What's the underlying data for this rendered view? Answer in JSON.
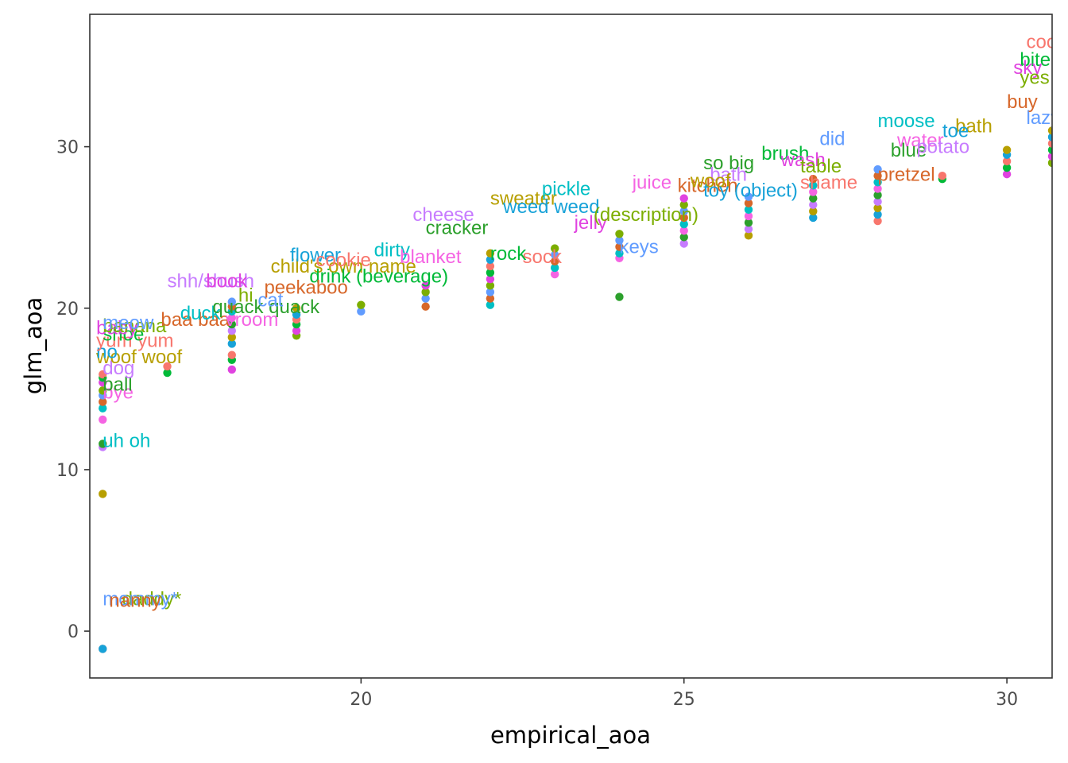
{
  "chart_data": {
    "type": "scatter",
    "xlabel": "empirical_aoa",
    "ylabel": "glm_aoa",
    "xlim": [
      15.8,
      30.7
    ],
    "ylim": [
      -2.9,
      38.2
    ],
    "x_ticks": [
      20,
      25,
      30
    ],
    "y_ticks": [
      0,
      10,
      20,
      30
    ],
    "grid": false,
    "legend": "none",
    "palette": [
      "#F8766D",
      "#D7672A",
      "#B79F00",
      "#7CAE00",
      "#2CA02C",
      "#00BA38",
      "#00BFC4",
      "#17A2D8",
      "#619CFF",
      "#C77CFF",
      "#E043E0",
      "#F564E3"
    ],
    "point_groups": [
      {
        "x": 16,
        "y": [
          -1.1,
          -1.1,
          8.5,
          11.4,
          11.6,
          13.1,
          13.8,
          14.2,
          14.6,
          14.9,
          15.4,
          15.7,
          15.9
        ]
      },
      {
        "x": 17,
        "y": [
          16.0,
          16.4
        ]
      },
      {
        "x": 18,
        "y": [
          16.2,
          16.8,
          17.1,
          17.8,
          18.2,
          18.6,
          19.0,
          19.4,
          19.8,
          20.1,
          20.4
        ]
      },
      {
        "x": 19,
        "y": [
          18.3,
          18.6,
          19.0,
          19.3,
          19.6,
          20.0
        ]
      },
      {
        "x": 20,
        "y": [
          19.8,
          20.2
        ]
      },
      {
        "x": 21,
        "y": [
          20.1,
          20.6,
          21.0,
          21.4
        ]
      },
      {
        "x": 22,
        "y": [
          20.2,
          20.6,
          21.0,
          21.4,
          21.8,
          22.2,
          22.6,
          23.0,
          23.4
        ]
      },
      {
        "x": 23,
        "y": [
          22.1,
          22.5,
          22.9,
          23.3,
          23.7
        ]
      },
      {
        "x": 24,
        "y": [
          20.7,
          23.1,
          23.4,
          23.8,
          24.2,
          24.6
        ]
      },
      {
        "x": 25,
        "y": [
          24.0,
          24.4,
          24.8,
          25.2,
          25.6,
          26.0,
          26.4,
          26.8
        ]
      },
      {
        "x": 26,
        "y": [
          24.5,
          24.9,
          25.3,
          25.7,
          26.1,
          26.5,
          26.9
        ]
      },
      {
        "x": 27,
        "y": [
          25.6,
          26.0,
          26.4,
          26.8,
          27.2,
          27.6,
          28.0
        ]
      },
      {
        "x": 28,
        "y": [
          25.4,
          25.8,
          26.2,
          26.6,
          27.0,
          27.4,
          27.8,
          28.2,
          28.6
        ]
      },
      {
        "x": 29,
        "y": [
          28.0,
          28.2
        ]
      },
      {
        "x": 30,
        "y": [
          28.3,
          28.7,
          29.1,
          29.5,
          29.8
        ]
      },
      {
        "x": 30.7,
        "y": [
          29.0,
          29.4,
          29.8,
          30.2,
          30.6,
          31.0
        ]
      }
    ],
    "labels": [
      {
        "text": "daddy*",
        "x": 16.3,
        "y": 1.6
      },
      {
        "text": "mommy*",
        "x": 16.0,
        "y": 1.6
      },
      {
        "text": "nanny",
        "x": 16.1,
        "y": 1.5
      },
      {
        "text": "uh oh",
        "x": 16.0,
        "y": 11.4
      },
      {
        "text": "bye",
        "x": 16.0,
        "y": 14.4
      },
      {
        "text": "ball",
        "x": 16.0,
        "y": 14.9
      },
      {
        "text": "dog",
        "x": 16.0,
        "y": 15.9
      },
      {
        "text": "woof woof",
        "x": 15.9,
        "y": 16.6
      },
      {
        "text": "no",
        "x": 15.9,
        "y": 16.9
      },
      {
        "text": "yum yum",
        "x": 15.9,
        "y": 17.6
      },
      {
        "text": "shoe",
        "x": 16.0,
        "y": 18.0
      },
      {
        "text": "baby",
        "x": 15.9,
        "y": 18.4
      },
      {
        "text": "banana",
        "x": 16.0,
        "y": 18.5
      },
      {
        "text": "meow",
        "x": 16.0,
        "y": 18.7
      },
      {
        "text": "baa baa",
        "x": 16.9,
        "y": 18.9
      },
      {
        "text": "duck",
        "x": 17.2,
        "y": 19.3
      },
      {
        "text": "vroom",
        "x": 17.9,
        "y": 18.9
      },
      {
        "text": "quack quack",
        "x": 17.7,
        "y": 19.7
      },
      {
        "text": "shh/shush",
        "x": 17.0,
        "y": 21.3
      },
      {
        "text": "child's own name",
        "x": 18.6,
        "y": 22.2
      },
      {
        "text": "flower",
        "x": 18.9,
        "y": 22.9
      },
      {
        "text": "cookie",
        "x": 19.3,
        "y": 22.6
      },
      {
        "text": "drink (beverage)",
        "x": 19.2,
        "y": 21.6
      },
      {
        "text": "book",
        "x": 17.6,
        "y": 21.3
      },
      {
        "text": "hi",
        "x": 18.1,
        "y": 20.4
      },
      {
        "text": "cat",
        "x": 18.4,
        "y": 20.1
      },
      {
        "text": "peekaboo",
        "x": 18.5,
        "y": 20.9
      },
      {
        "text": "dirty",
        "x": 20.2,
        "y": 23.2
      },
      {
        "text": "blanket",
        "x": 20.6,
        "y": 22.8
      },
      {
        "text": "cracker",
        "x": 21.0,
        "y": 24.6
      },
      {
        "text": "cheese",
        "x": 20.8,
        "y": 25.4
      },
      {
        "text": "sweater",
        "x": 22.0,
        "y": 26.4
      },
      {
        "text": "weed weed",
        "x": 22.2,
        "y": 25.9
      },
      {
        "text": "sock",
        "x": 22.5,
        "y": 22.8
      },
      {
        "text": "rock",
        "x": 22.0,
        "y": 23.0
      },
      {
        "text": "jelly",
        "x": 23.3,
        "y": 24.9
      },
      {
        "text": "(description)",
        "x": 23.6,
        "y": 25.4
      },
      {
        "text": "keys",
        "x": 24.0,
        "y": 23.4
      },
      {
        "text": "kitchen",
        "x": 24.9,
        "y": 27.2
      },
      {
        "text": "pickle",
        "x": 22.8,
        "y": 27.0
      },
      {
        "text": "juice",
        "x": 24.2,
        "y": 27.4
      },
      {
        "text": "so big",
        "x": 25.3,
        "y": 28.6
      },
      {
        "text": "bath",
        "x": 25.4,
        "y": 27.9
      },
      {
        "text": "woof",
        "x": 25.1,
        "y": 27.5
      },
      {
        "text": "toy (object)",
        "x": 25.3,
        "y": 26.9
      },
      {
        "text": "shame",
        "x": 26.8,
        "y": 27.4
      },
      {
        "text": "brush",
        "x": 26.2,
        "y": 29.2
      },
      {
        "text": "wash",
        "x": 26.5,
        "y": 28.8
      },
      {
        "text": "table",
        "x": 26.8,
        "y": 28.4
      },
      {
        "text": "did",
        "x": 27.1,
        "y": 30.1
      },
      {
        "text": "pretzel",
        "x": 28.0,
        "y": 27.9
      },
      {
        "text": "moose",
        "x": 28.0,
        "y": 31.2
      },
      {
        "text": "water",
        "x": 28.3,
        "y": 30.0
      },
      {
        "text": "blue",
        "x": 28.2,
        "y": 29.4
      },
      {
        "text": "potato",
        "x": 28.6,
        "y": 29.6
      },
      {
        "text": "bath",
        "x": 29.2,
        "y": 30.9
      },
      {
        "text": "toe",
        "x": 29.0,
        "y": 30.6
      },
      {
        "text": "cool",
        "x": 30.3,
        "y": 36.1
      },
      {
        "text": "bite",
        "x": 30.2,
        "y": 35.0
      },
      {
        "text": "sky",
        "x": 30.1,
        "y": 34.5
      },
      {
        "text": "yes",
        "x": 30.2,
        "y": 33.9
      },
      {
        "text": "lazy",
        "x": 30.3,
        "y": 31.4
      },
      {
        "text": "buy",
        "x": 30.0,
        "y": 32.4
      }
    ]
  }
}
